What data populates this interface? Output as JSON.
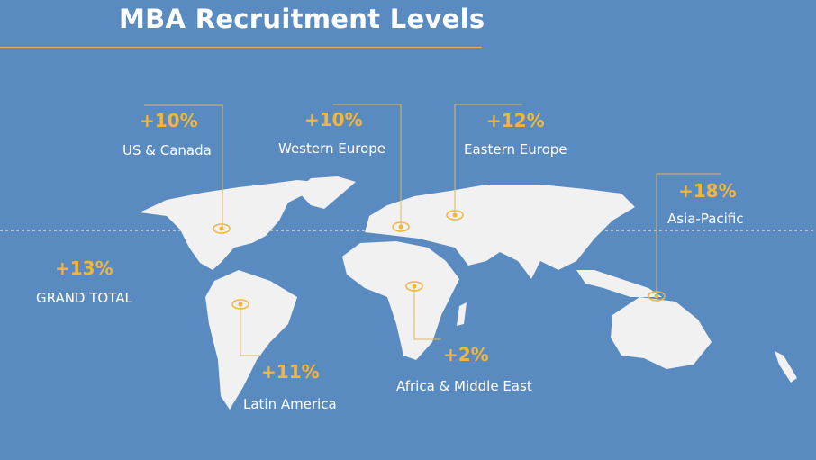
{
  "title": "MBA Recruitment Levels",
  "colors": {
    "background": "#5a8bc0",
    "accent": "#f2b63c",
    "land": "#f1f1f1"
  },
  "regions": [
    {
      "label": "US & Canada",
      "change": "+10%"
    },
    {
      "label": "Western Europe",
      "change": "+10%"
    },
    {
      "label": "Eastern Europe",
      "change": "+12%"
    },
    {
      "label": "Asia-Pacific",
      "change": "+18%"
    },
    {
      "label": "Latin America",
      "change": "+11%"
    },
    {
      "label": "Africa & Middle East",
      "change": "+2%"
    }
  ],
  "total": {
    "label": "GRAND TOTAL",
    "change": "+13%"
  }
}
